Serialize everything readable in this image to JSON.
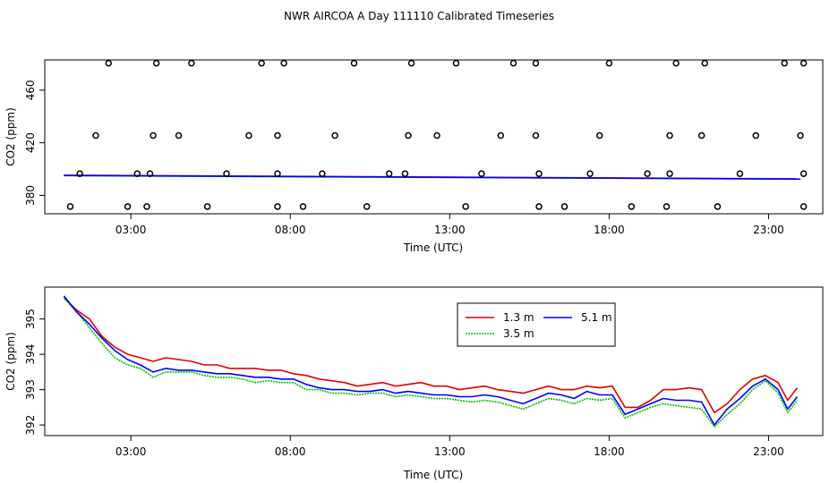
{
  "chart_data": {
    "title": "NWR AIRCOA A  Day 111110  Calibrated Timeseries",
    "panels": [
      {
        "type": "line+scatter",
        "xlabel": "Time (UTC)",
        "ylabel": "CO2 (ppm)",
        "xlim": [
          0.3,
          24.7
        ],
        "ylim": [
          366,
          483
        ],
        "xticks": [
          3,
          8,
          13,
          18,
          23
        ],
        "xtick_labels": [
          "03:00",
          "08:00",
          "13:00",
          "18:00",
          "23:00"
        ],
        "yticks": [
          380,
          420,
          460
        ],
        "ytick_labels": [
          "380",
          "420",
          "460"
        ],
        "series": [
          {
            "name": "1.3 m",
            "color": "#e00000",
            "x": [
              0.9,
              24.0
            ],
            "y": [
              395.3,
              392.6
            ]
          },
          {
            "name": "3.5 m",
            "color": "#00c000",
            "x": [
              0.9,
              24.0
            ],
            "y": [
              395.0,
              392.3
            ]
          },
          {
            "name": "5.1 m",
            "color": "#0000ff",
            "x": [
              0.9,
              24.0
            ],
            "y": [
              395.1,
              392.4
            ]
          }
        ],
        "calibration_points": {
          "levels": [
            371.5,
            396.5,
            425.5,
            480.5
          ],
          "x_371": [
            1.1,
            2.9,
            3.5,
            5.4,
            7.6,
            8.4,
            10.4,
            13.5,
            15.8,
            16.6,
            18.7,
            19.8,
            21.4,
            24.1
          ],
          "x_396": [
            1.4,
            3.2,
            3.6,
            6.0,
            7.6,
            9.0,
            11.1,
            11.6,
            14.0,
            15.8,
            17.4,
            19.2,
            19.9,
            22.1,
            24.1
          ],
          "x_425": [
            1.9,
            3.7,
            4.5,
            6.7,
            7.6,
            9.4,
            11.7,
            12.6,
            14.6,
            15.7,
            17.7,
            19.9,
            20.9,
            22.6,
            24.0
          ],
          "x_480": [
            2.3,
            3.8,
            4.9,
            7.1,
            7.8,
            10.0,
            11.8,
            13.2,
            15.0,
            15.7,
            18.0,
            20.1,
            21.0,
            23.5,
            24.1
          ]
        }
      },
      {
        "type": "line",
        "xlabel": "Time (UTC)",
        "ylabel": "CO2 (ppm)",
        "xlim": [
          0.3,
          24.7
        ],
        "ylim": [
          391.7,
          395.9
        ],
        "xticks": [
          3,
          8,
          13,
          18,
          23
        ],
        "xtick_labels": [
          "03:00",
          "08:00",
          "13:00",
          "18:00",
          "23:00"
        ],
        "yticks": [
          392,
          393,
          394,
          395
        ],
        "ytick_labels": [
          "392",
          "393",
          "394",
          "395"
        ],
        "legend": {
          "position": "top-center",
          "entries": [
            "1.3 m",
            "5.1 m",
            "3.5 m"
          ]
        },
        "series": [
          {
            "name": "1.3 m",
            "color": "#e00000",
            "x": [
              0.9,
              1.3,
              1.7,
              2.1,
              2.5,
              2.9,
              3.3,
              3.7,
              4.1,
              4.5,
              4.9,
              5.3,
              5.7,
              6.1,
              6.5,
              6.9,
              7.3,
              7.7,
              8.1,
              8.5,
              8.9,
              9.3,
              9.7,
              10.1,
              10.5,
              10.9,
              11.3,
              11.7,
              12.1,
              12.5,
              12.9,
              13.3,
              13.7,
              14.1,
              14.5,
              14.9,
              15.3,
              15.7,
              16.1,
              16.5,
              16.9,
              17.3,
              17.7,
              18.1,
              18.5,
              18.9,
              19.3,
              19.7,
              20.1,
              20.5,
              20.9,
              21.3,
              21.7,
              22.1,
              22.5,
              22.9,
              23.3,
              23.6,
              23.9
            ],
            "y": [
              395.6,
              395.25,
              395.0,
              394.5,
              394.2,
              394.0,
              393.9,
              393.8,
              393.9,
              393.85,
              393.8,
              393.7,
              393.7,
              393.6,
              393.6,
              393.6,
              393.55,
              393.55,
              393.45,
              393.4,
              393.3,
              393.25,
              393.2,
              393.1,
              393.15,
              393.2,
              393.1,
              393.15,
              393.2,
              393.1,
              393.1,
              393.0,
              393.05,
              393.1,
              393.0,
              392.95,
              392.9,
              393.0,
              393.1,
              393.0,
              393.0,
              393.1,
              393.05,
              393.1,
              392.5,
              392.5,
              392.7,
              393.0,
              393.0,
              393.05,
              393.0,
              392.35,
              392.6,
              393.0,
              393.3,
              393.4,
              393.2,
              392.7,
              393.05
            ]
          },
          {
            "name": "3.5 m",
            "color": "#00c000",
            "x": [
              0.9,
              1.3,
              1.7,
              2.1,
              2.5,
              2.9,
              3.3,
              3.7,
              4.1,
              4.5,
              4.9,
              5.3,
              5.7,
              6.1,
              6.5,
              6.9,
              7.3,
              7.7,
              8.1,
              8.5,
              8.9,
              9.3,
              9.7,
              10.1,
              10.5,
              10.9,
              11.3,
              11.7,
              12.1,
              12.5,
              12.9,
              13.3,
              13.7,
              14.1,
              14.5,
              14.9,
              15.3,
              15.7,
              16.1,
              16.5,
              16.9,
              17.3,
              17.7,
              18.1,
              18.5,
              18.9,
              19.3,
              19.7,
              20.1,
              20.5,
              20.9,
              21.3,
              21.7,
              22.1,
              22.5,
              22.9,
              23.3,
              23.6,
              23.9
            ],
            "y": [
              395.6,
              395.2,
              394.75,
              394.3,
              393.9,
              393.7,
              393.6,
              393.35,
              393.5,
              393.5,
              393.5,
              393.4,
              393.35,
              393.35,
              393.3,
              393.2,
              393.25,
              393.2,
              393.2,
              393.0,
              393.0,
              392.9,
              392.9,
              392.85,
              392.9,
              392.9,
              392.8,
              392.85,
              392.8,
              392.75,
              392.75,
              392.7,
              392.65,
              392.7,
              392.65,
              392.55,
              392.45,
              392.6,
              392.75,
              392.7,
              392.6,
              392.75,
              392.7,
              392.75,
              392.2,
              392.35,
              392.5,
              392.6,
              392.55,
              392.5,
              392.45,
              391.95,
              392.3,
              392.6,
              393.0,
              393.25,
              392.9,
              392.35,
              392.7
            ]
          },
          {
            "name": "5.1 m",
            "color": "#0000ff",
            "x": [
              0.9,
              1.3,
              1.7,
              2.1,
              2.5,
              2.9,
              3.3,
              3.7,
              4.1,
              4.5,
              4.9,
              5.3,
              5.7,
              6.1,
              6.5,
              6.9,
              7.3,
              7.7,
              8.1,
              8.5,
              8.9,
              9.3,
              9.7,
              10.1,
              10.5,
              10.9,
              11.3,
              11.7,
              12.1,
              12.5,
              12.9,
              13.3,
              13.7,
              14.1,
              14.5,
              14.9,
              15.3,
              15.7,
              16.1,
              16.5,
              16.9,
              17.3,
              17.7,
              18.1,
              18.5,
              18.9,
              19.3,
              19.7,
              20.1,
              20.5,
              20.9,
              21.3,
              21.7,
              22.1,
              22.5,
              22.9,
              23.3,
              23.6,
              23.9
            ],
            "y": [
              395.65,
              395.2,
              394.85,
              394.45,
              394.1,
              393.85,
              393.7,
              393.5,
              393.6,
              393.55,
              393.55,
              393.5,
              393.45,
              393.45,
              393.4,
              393.35,
              393.35,
              393.3,
              393.3,
              393.15,
              393.05,
              393.0,
              393.0,
              392.95,
              392.95,
              393.0,
              392.9,
              392.95,
              392.9,
              392.85,
              392.85,
              392.8,
              392.8,
              392.85,
              392.8,
              392.7,
              392.6,
              392.75,
              392.9,
              392.85,
              392.75,
              392.95,
              392.85,
              392.85,
              392.3,
              392.45,
              392.6,
              392.75,
              392.7,
              392.7,
              392.65,
              392.0,
              392.45,
              392.75,
              393.1,
              393.3,
              393.0,
              392.45,
              392.8
            ]
          }
        ]
      }
    ]
  }
}
